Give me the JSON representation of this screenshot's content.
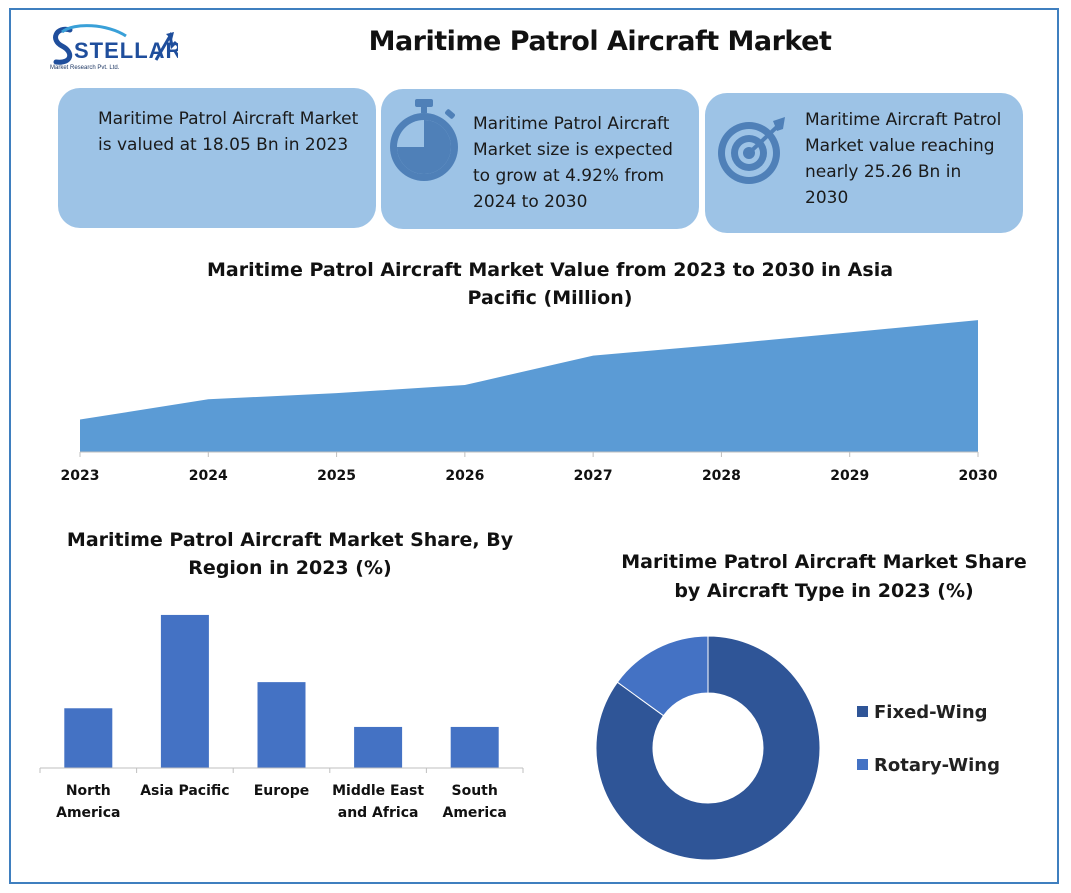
{
  "logo": {
    "brand": "STELLAR",
    "subtitle": "Market Research Pvt. Ltd."
  },
  "title": "Maritime Patrol Aircraft Market",
  "cards": [
    {
      "text": "Maritime Patrol Aircraft Market is valued at 18.05 Bn in 2023",
      "icon": ""
    },
    {
      "text": "Maritime Patrol Aircraft Market size is expected to grow at 4.92% from 2024 to 2030",
      "icon": "stopwatch-icon"
    },
    {
      "text": "Maritime Aircraft Patrol Market value reaching nearly 25.26 Bn in 2030",
      "icon": "target-icon"
    }
  ],
  "colors": {
    "card_bg": "#9dc3e6",
    "area": "#5b9bd5",
    "bar": "#4472c4",
    "fixed_wing": "#2f5597",
    "rotary_wing": "#4472c4",
    "frame": "#3f7fbf"
  },
  "chart_data": [
    {
      "type": "area",
      "title": "Maritime Patrol Aircraft Market Value from 2023 to 2030 in Asia Pacific (Million)",
      "x": [
        "2023",
        "2024",
        "2025",
        "2026",
        "2027",
        "2028",
        "2029",
        "2030"
      ],
      "values": [
        32,
        52,
        58,
        66,
        95,
        106,
        118,
        130
      ],
      "ylim": [
        0,
        140
      ],
      "grid": false
    },
    {
      "type": "bar",
      "title": "Maritime Patrol Aircraft Market Share, By Region in 2023 (%)",
      "categories": [
        "North America",
        "Asia Pacific",
        "Europe",
        "Middle East and Africa",
        "South America"
      ],
      "values": [
        16,
        41,
        23,
        11,
        11
      ],
      "ylim": [
        0,
        45
      ],
      "grid": false
    },
    {
      "type": "pie",
      "title": "Maritime Patrol Aircraft Market Share by Aircraft Type in 2023 (%)",
      "categories": [
        "Fixed-Wing",
        "Rotary-Wing"
      ],
      "values": [
        85,
        15
      ],
      "donut": true,
      "legend_position": "right"
    }
  ]
}
